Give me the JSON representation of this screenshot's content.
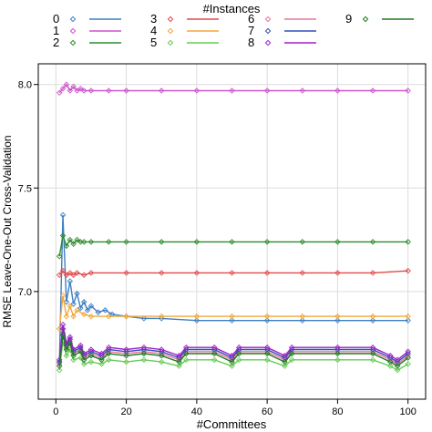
{
  "chart_data": {
    "type": "line",
    "title": "",
    "xlabel": "#Committees",
    "ylabel": "RMSE Leave-One-Out Cross-Validation",
    "xlim": [
      -5,
      105
    ],
    "ylim": [
      6.48,
      8.1
    ],
    "xticks": [
      0,
      20,
      40,
      60,
      80,
      100
    ],
    "yticks": [
      7.0,
      7.5,
      8.0
    ],
    "xtick_labels": [
      "0",
      "20",
      "40",
      "60",
      "80",
      "100"
    ],
    "ytick_labels": [
      "7.0",
      "7.5",
      "8.0"
    ],
    "grid": true,
    "legend": {
      "title": "#Instances",
      "placement": "top",
      "entries": [
        "0",
        "1",
        "2",
        "3",
        "4",
        "5",
        "6",
        "7",
        "8",
        "9"
      ]
    },
    "series": [
      {
        "name": "0",
        "color": "#3f7fc4",
        "points": [
          [
            1,
            6.66
          ],
          [
            2,
            7.37
          ],
          [
            3,
            6.95
          ],
          [
            4,
            7.05
          ],
          [
            5,
            6.94
          ],
          [
            6,
            6.99
          ],
          [
            7,
            6.92
          ],
          [
            8,
            6.95
          ],
          [
            9,
            6.91
          ],
          [
            10,
            6.93
          ],
          [
            12,
            6.9
          ],
          [
            14,
            6.91
          ],
          [
            16,
            6.89
          ],
          [
            20,
            6.88
          ],
          [
            25,
            6.87
          ],
          [
            30,
            6.87
          ],
          [
            40,
            6.86
          ],
          [
            50,
            6.86
          ],
          [
            60,
            6.86
          ],
          [
            70,
            6.86
          ],
          [
            80,
            6.86
          ],
          [
            90,
            6.86
          ],
          [
            100,
            6.86
          ]
        ]
      },
      {
        "name": "1",
        "color": "#cc55cc",
        "points": [
          [
            1,
            7.96
          ],
          [
            2,
            7.98
          ],
          [
            3,
            8.0
          ],
          [
            4,
            7.97
          ],
          [
            5,
            7.99
          ],
          [
            6,
            7.97
          ],
          [
            7,
            7.98
          ],
          [
            8,
            7.97
          ],
          [
            10,
            7.97
          ],
          [
            15,
            7.97
          ],
          [
            20,
            7.97
          ],
          [
            30,
            7.97
          ],
          [
            40,
            7.97
          ],
          [
            50,
            7.97
          ],
          [
            60,
            7.97
          ],
          [
            70,
            7.97
          ],
          [
            80,
            7.97
          ],
          [
            90,
            7.97
          ],
          [
            100,
            7.97
          ]
        ]
      },
      {
        "name": "2",
        "color": "#2e8b2e",
        "points": [
          [
            1,
            7.17
          ],
          [
            2,
            7.27
          ],
          [
            3,
            7.22
          ],
          [
            4,
            7.25
          ],
          [
            5,
            7.23
          ],
          [
            6,
            7.25
          ],
          [
            7,
            7.24
          ],
          [
            8,
            7.24
          ],
          [
            10,
            7.24
          ],
          [
            15,
            7.24
          ],
          [
            20,
            7.24
          ],
          [
            30,
            7.24
          ],
          [
            40,
            7.24
          ],
          [
            50,
            7.24
          ],
          [
            60,
            7.24
          ],
          [
            70,
            7.24
          ],
          [
            80,
            7.24
          ],
          [
            90,
            7.24
          ],
          [
            100,
            7.24
          ]
        ]
      },
      {
        "name": "3",
        "color": "#e04a4a",
        "points": [
          [
            1,
            7.08
          ],
          [
            2,
            7.1
          ],
          [
            3,
            7.08
          ],
          [
            4,
            7.09
          ],
          [
            5,
            7.08
          ],
          [
            6,
            7.09
          ],
          [
            8,
            7.08
          ],
          [
            10,
            7.09
          ],
          [
            20,
            7.09
          ],
          [
            30,
            7.09
          ],
          [
            40,
            7.09
          ],
          [
            50,
            7.09
          ],
          [
            60,
            7.09
          ],
          [
            70,
            7.09
          ],
          [
            80,
            7.09
          ],
          [
            90,
            7.09
          ],
          [
            100,
            7.1
          ]
        ]
      },
      {
        "name": "4",
        "color": "#f0a83a",
        "points": [
          [
            1,
            6.82
          ],
          [
            2,
            6.98
          ],
          [
            3,
            6.88
          ],
          [
            4,
            6.93
          ],
          [
            5,
            6.88
          ],
          [
            6,
            6.91
          ],
          [
            8,
            6.89
          ],
          [
            10,
            6.88
          ],
          [
            15,
            6.88
          ],
          [
            20,
            6.88
          ],
          [
            30,
            6.88
          ],
          [
            40,
            6.88
          ],
          [
            50,
            6.88
          ],
          [
            60,
            6.88
          ],
          [
            70,
            6.88
          ],
          [
            80,
            6.88
          ],
          [
            90,
            6.88
          ],
          [
            100,
            6.88
          ]
        ]
      },
      {
        "name": "5",
        "color": "#66cc55",
        "points": [
          [
            1,
            6.62
          ],
          [
            2,
            6.76
          ],
          [
            3,
            6.69
          ],
          [
            4,
            6.72
          ],
          [
            5,
            6.67
          ],
          [
            7,
            6.68
          ],
          [
            8,
            6.65
          ],
          [
            10,
            6.66
          ],
          [
            13,
            6.65
          ],
          [
            15,
            6.67
          ],
          [
            20,
            6.66
          ],
          [
            25,
            6.67
          ],
          [
            30,
            6.66
          ],
          [
            35,
            6.64
          ],
          [
            37,
            6.67
          ],
          [
            45,
            6.67
          ],
          [
            50,
            6.64
          ],
          [
            52,
            6.67
          ],
          [
            60,
            6.67
          ],
          [
            65,
            6.64
          ],
          [
            67,
            6.67
          ],
          [
            80,
            6.67
          ],
          [
            90,
            6.67
          ],
          [
            95,
            6.64
          ],
          [
            97,
            6.62
          ],
          [
            100,
            6.65
          ]
        ]
      },
      {
        "name": "6",
        "color": "#e8779b",
        "points": [
          [
            1,
            6.65
          ],
          [
            2,
            6.8
          ],
          [
            3,
            6.73
          ],
          [
            4,
            6.76
          ],
          [
            5,
            6.7
          ],
          [
            7,
            6.72
          ],
          [
            8,
            6.68
          ],
          [
            10,
            6.7
          ],
          [
            13,
            6.68
          ],
          [
            15,
            6.71
          ],
          [
            20,
            6.7
          ],
          [
            25,
            6.71
          ],
          [
            30,
            6.7
          ],
          [
            35,
            6.67
          ],
          [
            37,
            6.71
          ],
          [
            45,
            6.71
          ],
          [
            50,
            6.67
          ],
          [
            52,
            6.71
          ],
          [
            60,
            6.71
          ],
          [
            65,
            6.67
          ],
          [
            67,
            6.71
          ],
          [
            80,
            6.71
          ],
          [
            90,
            6.71
          ],
          [
            95,
            6.67
          ],
          [
            97,
            6.65
          ],
          [
            100,
            6.69
          ]
        ]
      },
      {
        "name": "7",
        "color": "#2f4fb8",
        "points": [
          [
            1,
            6.66
          ],
          [
            2,
            6.82
          ],
          [
            3,
            6.74
          ],
          [
            4,
            6.77
          ],
          [
            5,
            6.71
          ],
          [
            7,
            6.73
          ],
          [
            8,
            6.69
          ],
          [
            10,
            6.71
          ],
          [
            13,
            6.69
          ],
          [
            15,
            6.72
          ],
          [
            20,
            6.71
          ],
          [
            25,
            6.72
          ],
          [
            30,
            6.71
          ],
          [
            35,
            6.68
          ],
          [
            37,
            6.72
          ],
          [
            45,
            6.72
          ],
          [
            50,
            6.68
          ],
          [
            52,
            6.72
          ],
          [
            60,
            6.72
          ],
          [
            65,
            6.68
          ],
          [
            67,
            6.72
          ],
          [
            80,
            6.72
          ],
          [
            90,
            6.72
          ],
          [
            95,
            6.68
          ],
          [
            97,
            6.66
          ],
          [
            100,
            6.7
          ]
        ]
      },
      {
        "name": "8",
        "color": "#a020c8",
        "points": [
          [
            1,
            6.67
          ],
          [
            2,
            6.84
          ],
          [
            3,
            6.75
          ],
          [
            4,
            6.78
          ],
          [
            5,
            6.72
          ],
          [
            7,
            6.74
          ],
          [
            8,
            6.7
          ],
          [
            10,
            6.72
          ],
          [
            13,
            6.7
          ],
          [
            15,
            6.73
          ],
          [
            20,
            6.72
          ],
          [
            25,
            6.73
          ],
          [
            30,
            6.72
          ],
          [
            35,
            6.69
          ],
          [
            37,
            6.73
          ],
          [
            45,
            6.73
          ],
          [
            50,
            6.69
          ],
          [
            52,
            6.73
          ],
          [
            60,
            6.73
          ],
          [
            65,
            6.69
          ],
          [
            67,
            6.73
          ],
          [
            80,
            6.73
          ],
          [
            90,
            6.73
          ],
          [
            95,
            6.69
          ],
          [
            97,
            6.67
          ],
          [
            100,
            6.71
          ]
        ]
      },
      {
        "name": "9",
        "color": "#1f7a1f",
        "points": [
          [
            1,
            6.64
          ],
          [
            2,
            6.79
          ],
          [
            3,
            6.72
          ],
          [
            4,
            6.75
          ],
          [
            5,
            6.69
          ],
          [
            7,
            6.71
          ],
          [
            8,
            6.67
          ],
          [
            10,
            6.69
          ],
          [
            13,
            6.67
          ],
          [
            15,
            6.7
          ],
          [
            20,
            6.69
          ],
          [
            25,
            6.7
          ],
          [
            30,
            6.69
          ],
          [
            35,
            6.66
          ],
          [
            37,
            6.7
          ],
          [
            45,
            6.7
          ],
          [
            50,
            6.66
          ],
          [
            52,
            6.7
          ],
          [
            60,
            6.7
          ],
          [
            65,
            6.66
          ],
          [
            67,
            6.7
          ],
          [
            80,
            6.7
          ],
          [
            90,
            6.7
          ],
          [
            95,
            6.66
          ],
          [
            97,
            6.64
          ],
          [
            100,
            6.68
          ]
        ]
      }
    ]
  }
}
